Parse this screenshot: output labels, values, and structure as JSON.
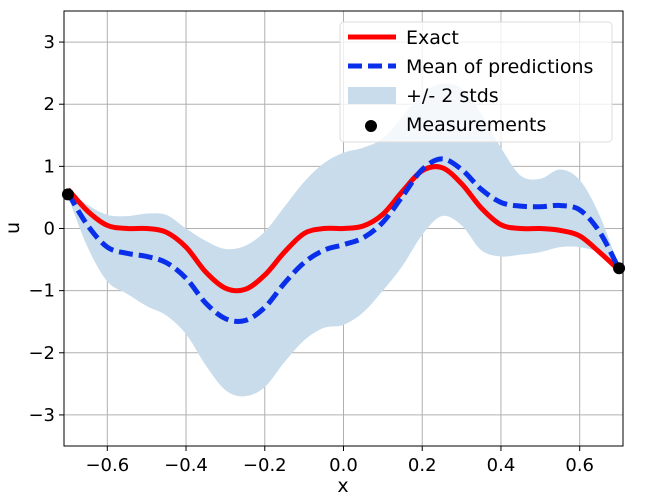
{
  "chart_data": {
    "type": "line",
    "xlabel": "x",
    "ylabel": "u",
    "xlim": [
      -0.71,
      0.71
    ],
    "ylim": [
      -3.5,
      3.5
    ],
    "grid": true,
    "legend_position": "top-right",
    "x_ticks": [
      -0.6,
      -0.4,
      -0.2,
      0.0,
      0.2,
      0.4,
      0.6
    ],
    "x_tick_labels": [
      "−0.6",
      "−0.4",
      "−0.2",
      "0.0",
      "0.2",
      "0.4",
      "0.6"
    ],
    "y_ticks": [
      -3,
      -2,
      -1,
      0,
      1,
      2,
      3
    ],
    "y_tick_labels": [
      "−3",
      "−2",
      "−1",
      "0",
      "1",
      "2",
      "3"
    ],
    "series": [
      {
        "name": "Exact",
        "style": "solid",
        "color": "#ff0000",
        "x": [
          -0.7,
          -0.65,
          -0.6,
          -0.55,
          -0.5,
          -0.45,
          -0.4,
          -0.35,
          -0.3,
          -0.25,
          -0.2,
          -0.15,
          -0.1,
          -0.05,
          0.0,
          0.05,
          0.1,
          0.15,
          0.2,
          0.25,
          0.3,
          0.35,
          0.4,
          0.45,
          0.5,
          0.55,
          0.6,
          0.65,
          0.7
        ],
        "y": [
          0.63,
          0.28,
          0.05,
          0.0,
          0.0,
          -0.06,
          -0.3,
          -0.7,
          -0.96,
          -0.98,
          -0.75,
          -0.38,
          -0.08,
          0.0,
          0.0,
          0.04,
          0.23,
          0.6,
          0.93,
          0.98,
          0.72,
          0.33,
          0.06,
          0.0,
          0.0,
          -0.03,
          -0.12,
          -0.38,
          -0.67
        ]
      },
      {
        "name": "Mean of predictions",
        "style": "dashed",
        "color": "#0a2fea",
        "x": [
          -0.7,
          -0.65,
          -0.6,
          -0.55,
          -0.5,
          -0.45,
          -0.4,
          -0.35,
          -0.3,
          -0.25,
          -0.2,
          -0.15,
          -0.1,
          -0.05,
          0.0,
          0.05,
          0.1,
          0.15,
          0.2,
          0.25,
          0.3,
          0.35,
          0.4,
          0.45,
          0.5,
          0.55,
          0.6,
          0.65,
          0.7
        ],
        "y": [
          0.57,
          0.05,
          -0.3,
          -0.4,
          -0.45,
          -0.55,
          -0.8,
          -1.2,
          -1.45,
          -1.48,
          -1.27,
          -0.88,
          -0.55,
          -0.35,
          -0.26,
          -0.15,
          0.1,
          0.52,
          0.95,
          1.12,
          0.95,
          0.63,
          0.42,
          0.36,
          0.35,
          0.37,
          0.3,
          -0.05,
          -0.65
        ]
      }
    ],
    "band": {
      "name": "+/- 2 stds",
      "color": "#c8dcec",
      "x": [
        -0.7,
        -0.65,
        -0.6,
        -0.55,
        -0.5,
        -0.45,
        -0.4,
        -0.35,
        -0.3,
        -0.25,
        -0.2,
        -0.15,
        -0.1,
        -0.05,
        0.0,
        0.05,
        0.1,
        0.15,
        0.2,
        0.25,
        0.3,
        0.35,
        0.4,
        0.45,
        0.5,
        0.55,
        0.6,
        0.65,
        0.7
      ],
      "upper": [
        0.62,
        0.38,
        0.22,
        0.2,
        0.24,
        0.22,
        0.0,
        -0.2,
        -0.33,
        -0.28,
        -0.05,
        0.35,
        0.75,
        1.05,
        1.22,
        1.3,
        1.45,
        1.8,
        2.18,
        2.33,
        2.25,
        1.85,
        1.3,
        0.85,
        0.8,
        0.95,
        0.78,
        0.22,
        -0.62
      ],
      "lower": [
        0.52,
        -0.3,
        -0.85,
        -1.05,
        -1.25,
        -1.4,
        -1.7,
        -2.2,
        -2.6,
        -2.7,
        -2.55,
        -2.15,
        -1.8,
        -1.6,
        -1.55,
        -1.35,
        -1.0,
        -0.6,
        -0.1,
        0.2,
        0.05,
        -0.35,
        -0.45,
        -0.42,
        -0.38,
        -0.3,
        -0.3,
        -0.4,
        -0.68
      ]
    },
    "measurements": {
      "name": "Measurements",
      "color": "#000000",
      "x": [
        -0.7,
        0.7
      ],
      "y": [
        0.55,
        -0.64
      ]
    },
    "legend": [
      "Exact",
      "Mean of predictions",
      "+/- 2 stds",
      "Measurements"
    ]
  }
}
